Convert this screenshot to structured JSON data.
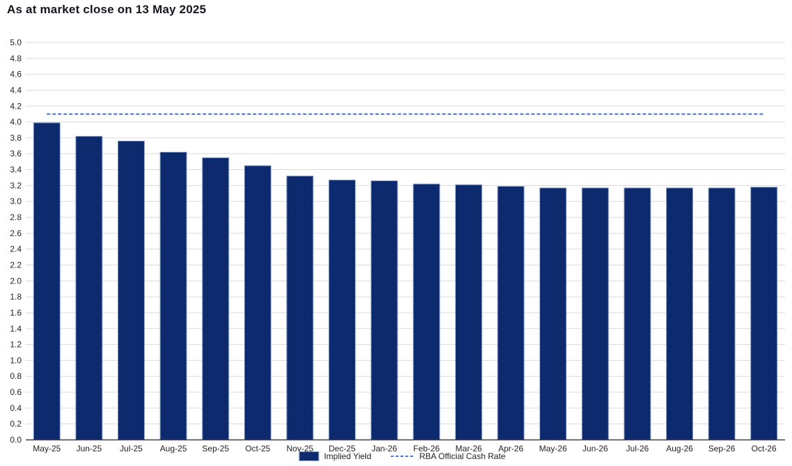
{
  "title": "As at market close on 13 May 2025",
  "chart_data": {
    "type": "bar",
    "categories": [
      "May-25",
      "Jun-25",
      "Jul-25",
      "Aug-25",
      "Sep-25",
      "Oct-25",
      "Nov-25",
      "Dec-25",
      "Jan-26",
      "Feb-26",
      "Mar-26",
      "Apr-26",
      "May-26",
      "Jun-26",
      "Jul-26",
      "Aug-26",
      "Sep-26",
      "Oct-26"
    ],
    "series": [
      {
        "name": "Implied Yield",
        "type": "bar",
        "values": [
          3.99,
          3.82,
          3.76,
          3.62,
          3.55,
          3.45,
          3.32,
          3.27,
          3.26,
          3.22,
          3.21,
          3.19,
          3.17,
          3.17,
          3.17,
          3.17,
          3.17,
          3.18
        ],
        "color": "#0d2a6e",
        "border_color": "#8aa3c9"
      },
      {
        "name": "RBA Official Cash Rate",
        "type": "dashed-line",
        "value": 4.1,
        "color": "#3d6de8"
      }
    ],
    "ylim": [
      0,
      5
    ],
    "ytick_step": 0.2,
    "grid": true,
    "legend_position": "bottom-center",
    "xlabel": "",
    "ylabel": "",
    "colors": {
      "grid": "#d9d9d9",
      "axis": "#404040",
      "tick_text": "#1f1f1f",
      "title_text": "#14141e",
      "background": "#ffffff"
    }
  }
}
